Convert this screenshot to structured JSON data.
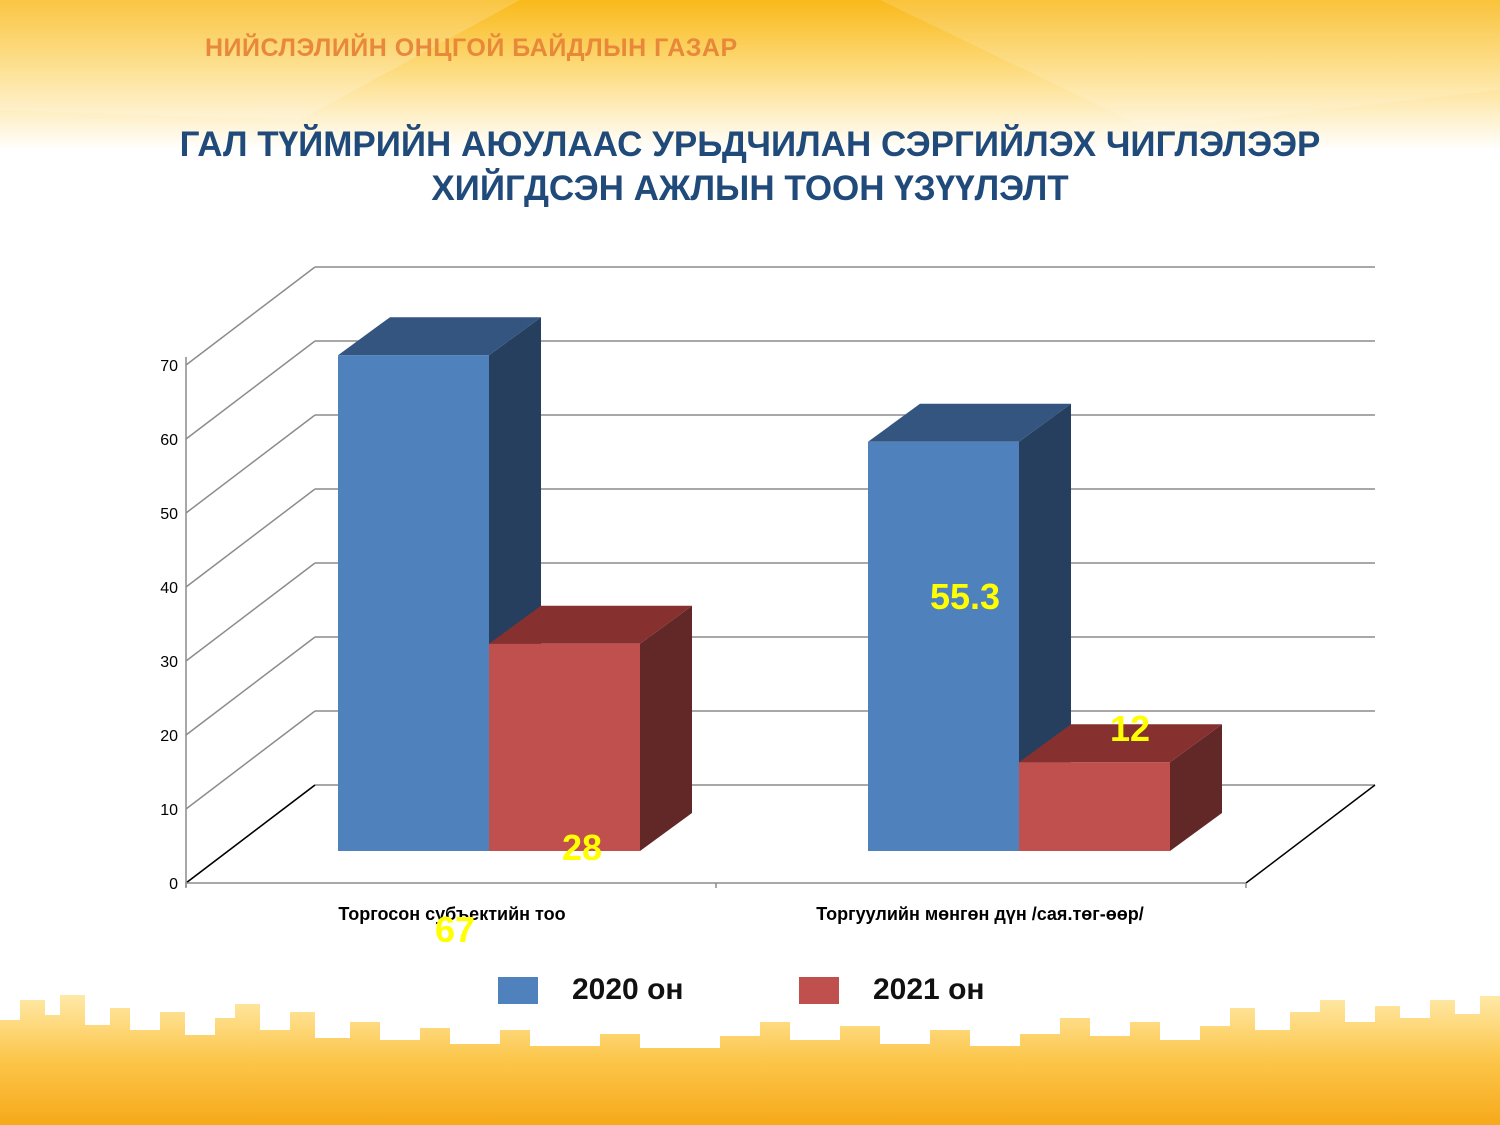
{
  "header": {
    "org_name": "НИЙСЛЭЛИЙН ОНЦГОЙ БАЙДЛЫН ГАЗАР",
    "title_line1": "ГАЛ ТҮЙМРИЙН АЮУЛААС УРЬДЧИЛАН СЭРГИЙЛЭХ ЧИГЛЭЛЭЭР",
    "title_line2": "ХИЙГДСЭН АЖЛЫН ТООН ҮЗҮҮЛЭЛТ"
  },
  "colors": {
    "series_2020": "#4f81bd",
    "series_2021": "#c0504d",
    "data_label": "#ffff00",
    "title": "#1f4a7a",
    "org_name": "#e8883a"
  },
  "chart_data": {
    "type": "bar",
    "style": "3d-clustered-column",
    "categories": [
      "Торгосон субъектийн тоо",
      "Торгуулийн мөнгөн дүн /сая.төг-өөр/"
    ],
    "series": [
      {
        "name": "2020 он",
        "values": [
          67,
          55.3
        ],
        "data_labels": [
          "67",
          "55.3"
        ]
      },
      {
        "name": "2021 он",
        "values": [
          28,
          12
        ],
        "data_labels": [
          "28",
          "12"
        ]
      }
    ],
    "yticks": [
      "0",
      "10",
      "20",
      "30",
      "40",
      "50",
      "60",
      "70"
    ],
    "ylim": [
      0,
      70
    ],
    "grid": true,
    "legend_position": "bottom"
  }
}
